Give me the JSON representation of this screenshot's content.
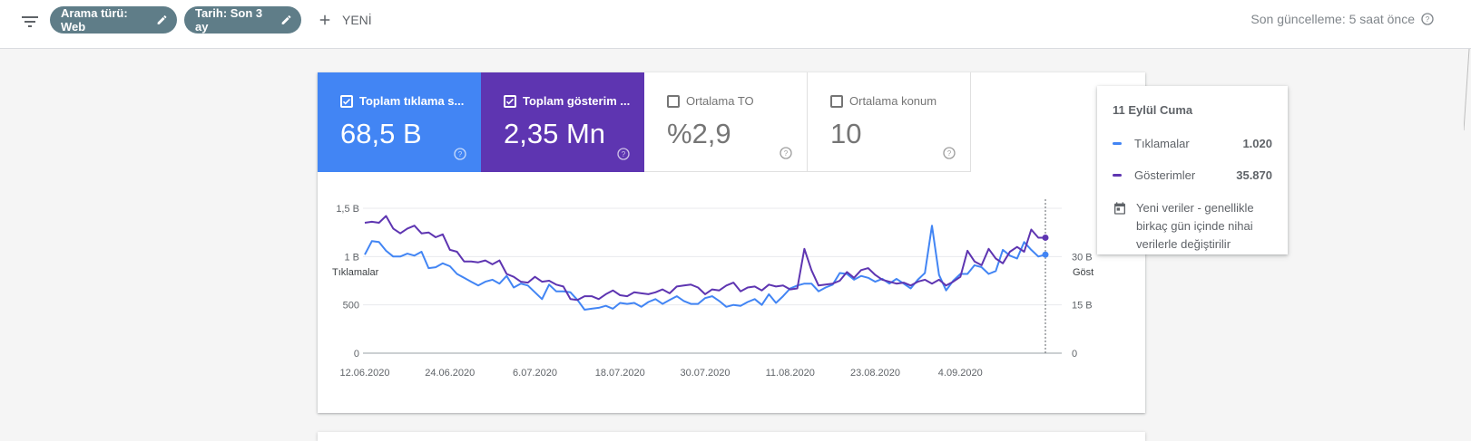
{
  "toolbar": {
    "filter_icon": "filter-list-icon",
    "chips": [
      {
        "label": "Arama türü: Web"
      },
      {
        "label": "Tarih: Son 3 ay"
      }
    ],
    "new_label": "YENİ",
    "last_update": "Son güncelleme: 5 saat önce"
  },
  "metrics": [
    {
      "label": "Toplam tıklama s...",
      "value": "68,5 B",
      "checked": true,
      "color": "#4285f4"
    },
    {
      "label": "Toplam gösterim ...",
      "value": "2,35 Mn",
      "checked": true,
      "color": "#5e35b1"
    },
    {
      "label": "Ortalama TO",
      "value": "%2,9",
      "checked": false
    },
    {
      "label": "Ortalama konum",
      "value": "10",
      "checked": false
    }
  ],
  "chart": {
    "left_axis_title": "Tıklamalar",
    "right_axis_title": "Göst",
    "left_ticks": [
      "0",
      "500",
      "1 B",
      "1,5 B"
    ],
    "right_ticks": [
      "0",
      "15 B",
      "30 B"
    ],
    "x_ticks": [
      "12.06.2020",
      "24.06.2020",
      "6.07.2020",
      "18.07.2020",
      "30.07.2020",
      "11.08.2020",
      "23.08.2020",
      "4.09.2020"
    ]
  },
  "chart_data": {
    "type": "line",
    "x_start": "12.06.2020",
    "x_end": "11.09.2020",
    "y_left_range": [
      0,
      1500
    ],
    "y_right_range": [
      0,
      45000
    ],
    "series": [
      {
        "name": "Tıklamalar",
        "axis": "left",
        "color": "#4285f4",
        "values": [
          1020,
          1160,
          1150,
          1060,
          1000,
          1000,
          1030,
          1010,
          1050,
          880,
          890,
          930,
          900,
          820,
          780,
          740,
          700,
          740,
          760,
          720,
          800,
          680,
          720,
          700,
          630,
          560,
          710,
          640,
          640,
          630,
          550,
          450,
          460,
          470,
          490,
          460,
          520,
          510,
          520,
          480,
          530,
          560,
          510,
          550,
          590,
          540,
          510,
          510,
          570,
          590,
          540,
          480,
          500,
          490,
          530,
          560,
          500,
          610,
          520,
          590,
          670,
          700,
          720,
          720,
          640,
          680,
          710,
          830,
          820,
          760,
          800,
          780,
          740,
          770,
          720,
          770,
          720,
          670,
          760,
          830,
          1320,
          810,
          650,
          750,
          820,
          820,
          910,
          890,
          820,
          850,
          1070,
          1010,
          980,
          1150,
          1070,
          1000,
          1020
        ]
      },
      {
        "name": "Gösterimler",
        "axis": "right",
        "color": "#5e35b1",
        "values": [
          40500,
          40800,
          40500,
          42600,
          38700,
          37200,
          38700,
          39600,
          37200,
          37500,
          36000,
          36900,
          32100,
          31500,
          28500,
          28500,
          28200,
          28800,
          27600,
          28800,
          24600,
          23700,
          22200,
          21900,
          23700,
          22200,
          22500,
          21300,
          20700,
          16800,
          16500,
          17700,
          17700,
          16800,
          18300,
          19500,
          18000,
          17700,
          18900,
          18600,
          18300,
          18900,
          19800,
          18600,
          20700,
          21000,
          21300,
          20400,
          18300,
          19800,
          19500,
          21000,
          21900,
          19200,
          20400,
          20700,
          19500,
          21300,
          20700,
          21000,
          19800,
          20100,
          32400,
          25800,
          21000,
          21300,
          21600,
          22500,
          25200,
          23400,
          25800,
          26400,
          24300,
          22800,
          22200,
          21600,
          21900,
          21000,
          22200,
          22800,
          21600,
          22800,
          21000,
          22200,
          23700,
          31800,
          28500,
          27300,
          32400,
          29400,
          27900,
          31500,
          33000,
          31500,
          38400,
          35870,
          35870
        ]
      }
    ],
    "highlight": {
      "date": "11 Eylül Cuma",
      "Tıklamalar": 1020,
      "Gösterimler": 35870
    }
  },
  "tooltip": {
    "title": "11 Eylül Cuma",
    "rows": [
      {
        "label": "Tıklamalar",
        "value": "1.020",
        "color": "#4285f4"
      },
      {
        "label": "Gösterimler",
        "value": "35.870",
        "color": "#5e35b1"
      }
    ],
    "note": "Yeni veriler - genellikle birkaç gün içinde nihai verilerle değiştirilir",
    "note_icon": "calendar-icon"
  }
}
